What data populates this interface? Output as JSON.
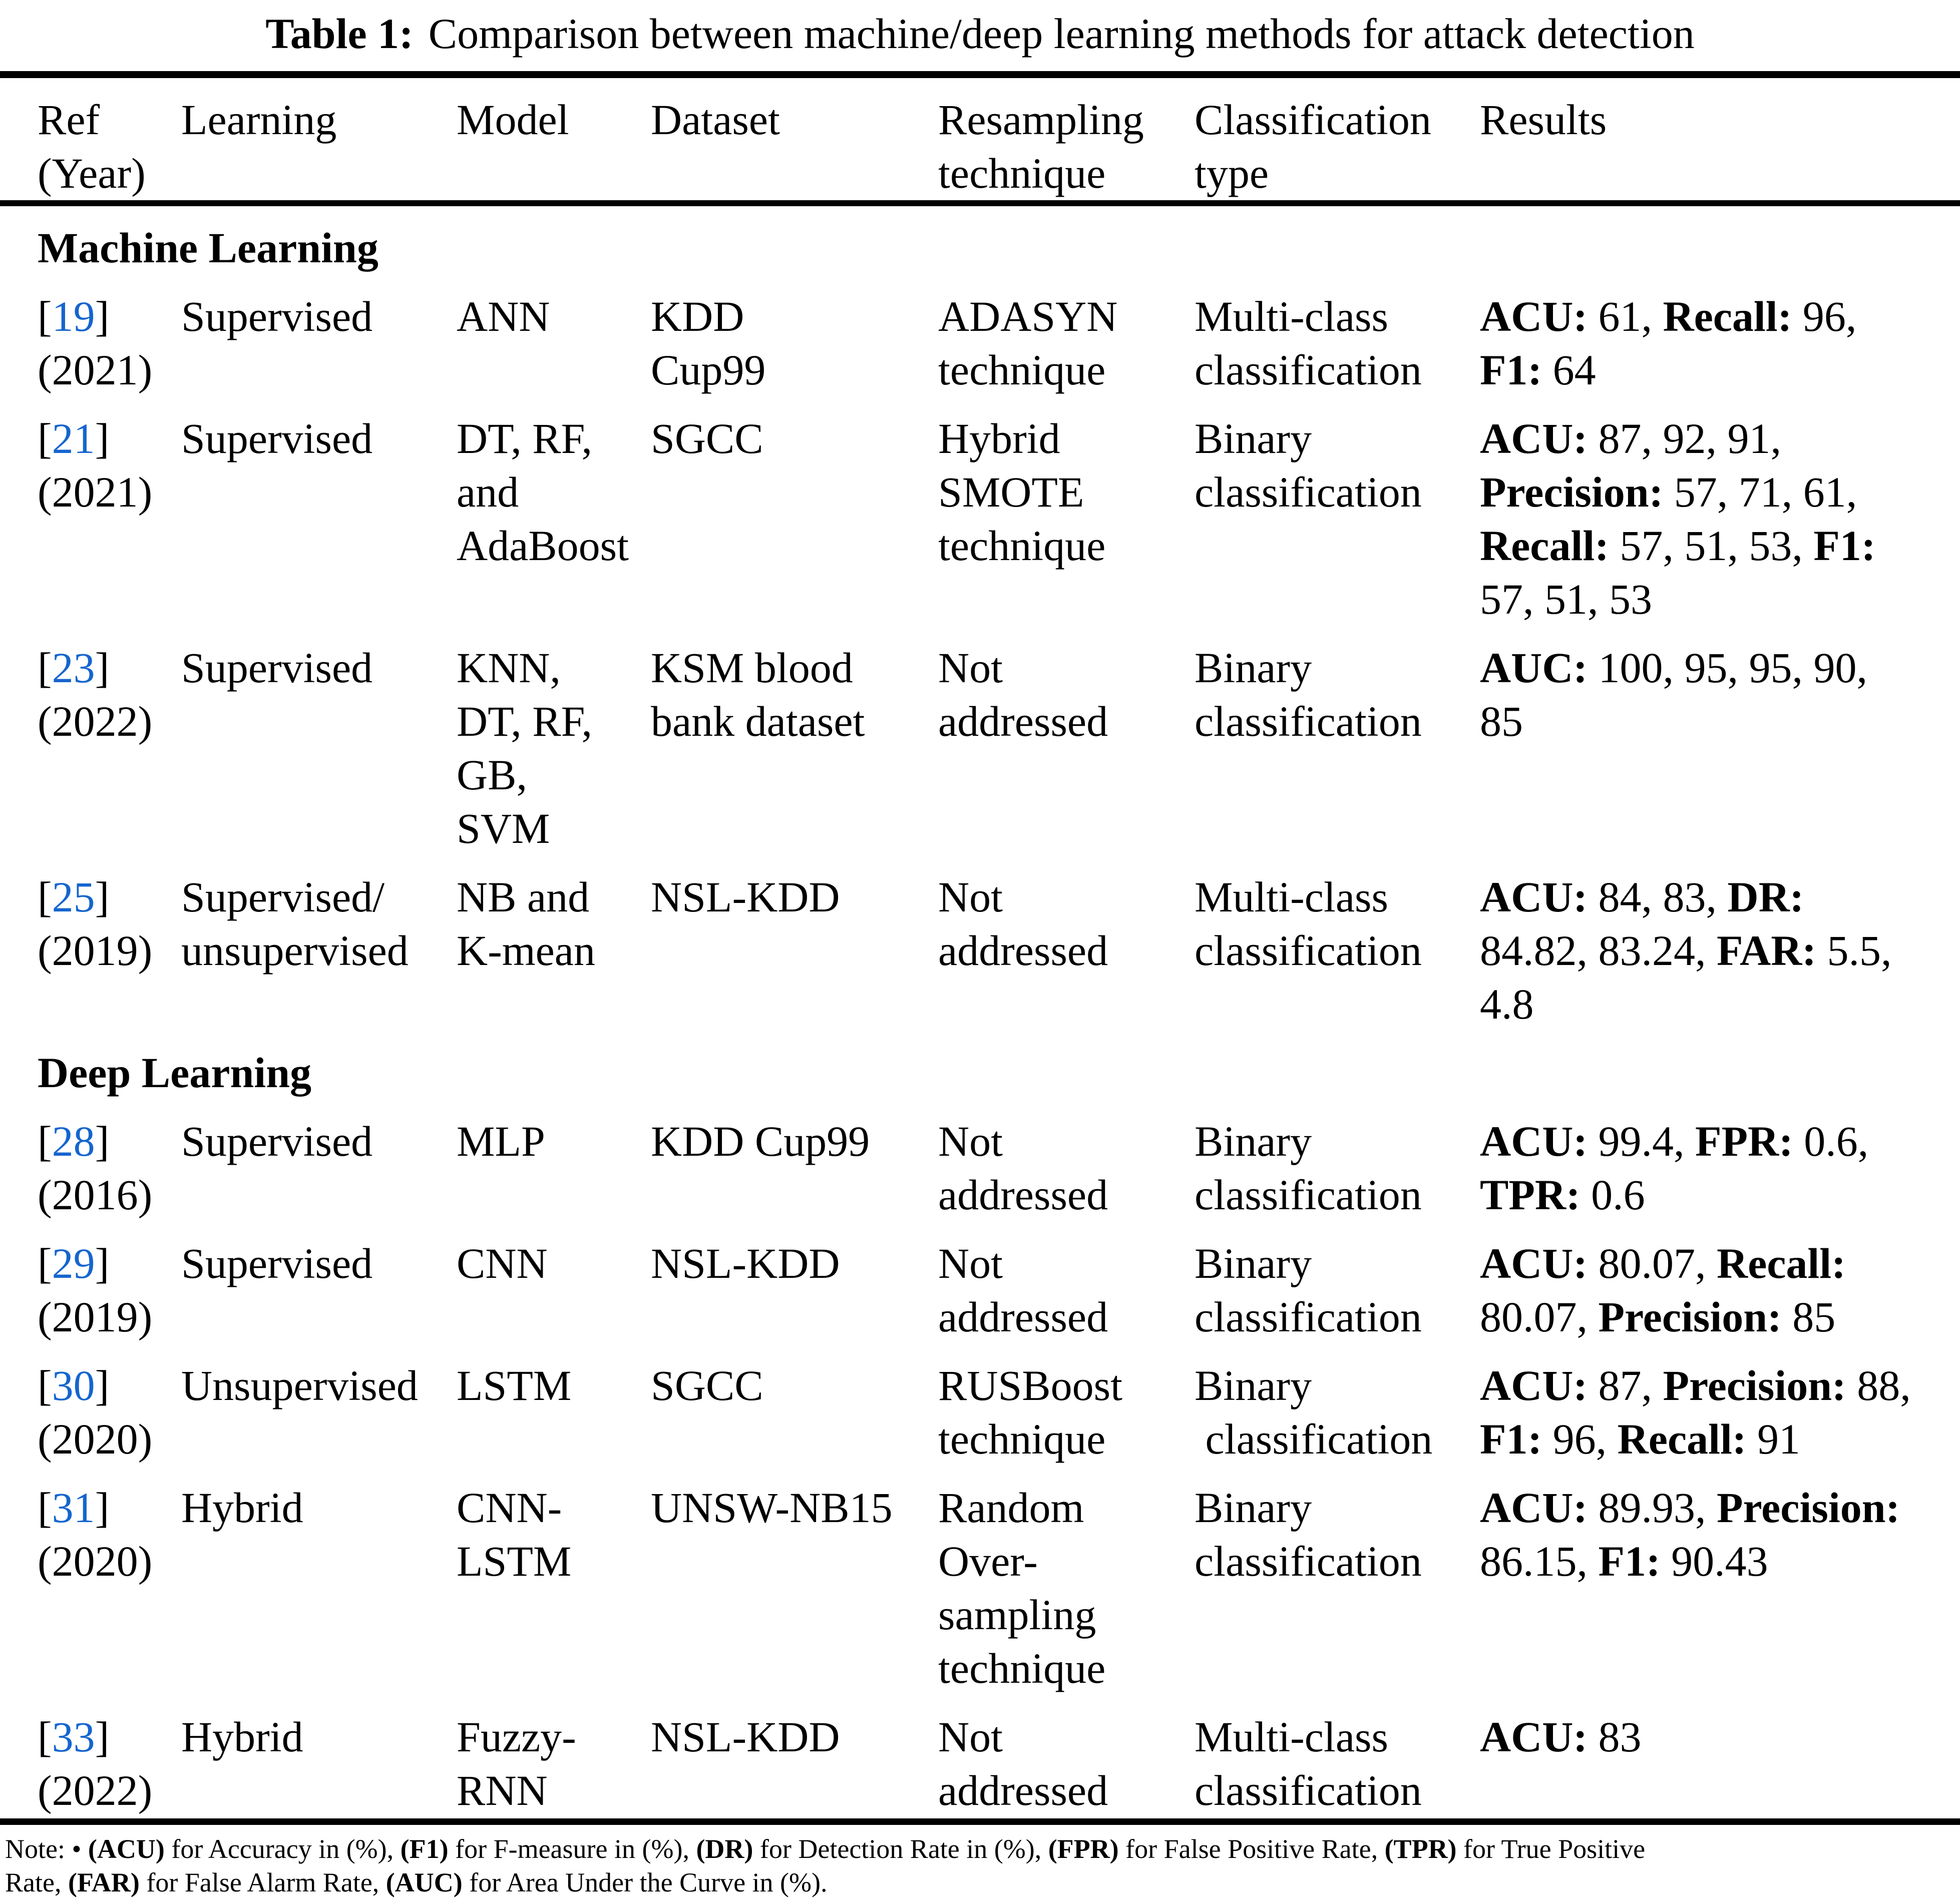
{
  "title": {
    "label": "Table 1:",
    "text": "Comparison between machine/deep learning methods for attack detection"
  },
  "colors": {
    "link_blue": "#1565CE",
    "text": "#000000",
    "background": "#FFFFFF"
  },
  "header": {
    "columns": [
      {
        "id": "ref",
        "lines": [
          "Ref",
          "(Year)"
        ]
      },
      {
        "id": "learning",
        "lines": [
          "Learning"
        ]
      },
      {
        "id": "model",
        "lines": [
          "Model"
        ]
      },
      {
        "id": "dataset",
        "lines": [
          "Dataset"
        ]
      },
      {
        "id": "resampling",
        "lines": [
          "Resampling",
          "technique"
        ]
      },
      {
        "id": "classification",
        "lines": [
          "Classification",
          "type"
        ]
      },
      {
        "id": "results",
        "lines": [
          "Results"
        ]
      }
    ]
  },
  "sections": [
    {
      "name": "Machine Learning",
      "rows": [
        {
          "ref_num": "19",
          "year": "(2021)",
          "learning": [
            "Supervised"
          ],
          "model": [
            "ANN"
          ],
          "dataset": [
            "KDD",
            "Cup99"
          ],
          "resampling": [
            "ADASYN",
            "technique"
          ],
          "classification": [
            "Multi-class",
            "classification"
          ],
          "results": [
            [
              [
                1,
                "ACU:"
              ],
              [
                0,
                " 61, "
              ],
              [
                1,
                "Recall:"
              ],
              [
                0,
                " 96,"
              ]
            ],
            [
              [
                1,
                "F1:"
              ],
              [
                0,
                " 64"
              ]
            ]
          ]
        },
        {
          "ref_num": "21",
          "year": "(2021)",
          "learning": [
            "Supervised"
          ],
          "model": [
            "DT, RF,",
            "and",
            "AdaBoost"
          ],
          "dataset": [
            "SGCC"
          ],
          "resampling": [
            "Hybrid",
            "SMOTE",
            "technique"
          ],
          "classification": [
            "Binary",
            "classification"
          ],
          "results": [
            [
              [
                1,
                "ACU:"
              ],
              [
                0,
                " 87, 92, 91,"
              ]
            ],
            [
              [
                1,
                "Precision:"
              ],
              [
                0,
                " 57, 71, 61,"
              ]
            ],
            [
              [
                1,
                "Recall:"
              ],
              [
                0,
                " 57, 51, 53, "
              ],
              [
                1,
                "F1:"
              ]
            ],
            [
              [
                0,
                "57, 51, 53"
              ]
            ]
          ]
        },
        {
          "ref_num": "23",
          "year": "(2022)",
          "learning": [
            "Supervised"
          ],
          "model": [
            "KNN,",
            "DT, RF,",
            "GB,",
            "SVM"
          ],
          "dataset": [
            "KSM blood",
            "bank dataset"
          ],
          "resampling": [
            "Not",
            "addressed"
          ],
          "classification": [
            "Binary",
            "classification"
          ],
          "results": [
            [
              [
                1,
                "AUC:"
              ],
              [
                0,
                " 100, 95, 95, 90,"
              ]
            ],
            [
              [
                0,
                "85"
              ]
            ]
          ]
        },
        {
          "ref_num": "25",
          "year": "(2019)",
          "learning": [
            "Supervised/",
            "unsupervised"
          ],
          "model": [
            "NB and",
            "K-mean"
          ],
          "dataset": [
            "NSL-KDD"
          ],
          "resampling": [
            "Not",
            "addressed"
          ],
          "classification": [
            "Multi-class",
            "classification"
          ],
          "results": [
            [
              [
                1,
                "ACU:"
              ],
              [
                0,
                " 84, 83, "
              ],
              [
                1,
                "DR:"
              ]
            ],
            [
              [
                0,
                "84.82, 83.24, "
              ],
              [
                1,
                "FAR:"
              ],
              [
                0,
                " 5.5,"
              ]
            ],
            [
              [
                0,
                "4.8"
              ]
            ]
          ]
        }
      ]
    },
    {
      "name": "Deep Learning",
      "rows": [
        {
          "ref_num": "28",
          "year": "(2016)",
          "learning": [
            "Supervised"
          ],
          "model": [
            "MLP"
          ],
          "dataset": [
            "KDD Cup99"
          ],
          "resampling": [
            "Not",
            "addressed"
          ],
          "classification": [
            "Binary",
            "classification"
          ],
          "results": [
            [
              [
                1,
                "ACU:"
              ],
              [
                0,
                " 99.4, "
              ],
              [
                1,
                "FPR:"
              ],
              [
                0,
                " 0.6,"
              ]
            ],
            [
              [
                1,
                "TPR:"
              ],
              [
                0,
                " 0.6"
              ]
            ]
          ]
        },
        {
          "ref_num": "29",
          "year": "(2019)",
          "learning": [
            "Supervised"
          ],
          "model": [
            "CNN"
          ],
          "dataset": [
            "NSL-KDD"
          ],
          "resampling": [
            "Not",
            "addressed"
          ],
          "classification": [
            "Binary",
            "classification"
          ],
          "results": [
            [
              [
                1,
                "ACU:"
              ],
              [
                0,
                " 80.07, "
              ],
              [
                1,
                "Recall:"
              ]
            ],
            [
              [
                0,
                "80.07, "
              ],
              [
                1,
                "Precision:"
              ],
              [
                0,
                " 85"
              ]
            ]
          ]
        },
        {
          "ref_num": "30",
          "year": "(2020)",
          "learning": [
            "Unsupervised"
          ],
          "model": [
            "LSTM"
          ],
          "dataset": [
            "SGCC"
          ],
          "resampling": [
            "RUSBoost",
            "technique"
          ],
          "classification": [
            "Binary",
            " classification"
          ],
          "results": [
            [
              [
                1,
                "ACU:"
              ],
              [
                0,
                " 87, "
              ],
              [
                1,
                "Precision:"
              ],
              [
                0,
                " 88,"
              ]
            ],
            [
              [
                1,
                "F1:"
              ],
              [
                0,
                " 96, "
              ],
              [
                1,
                "Recall:"
              ],
              [
                0,
                " 91"
              ]
            ]
          ]
        },
        {
          "ref_num": "31",
          "year": "(2020)",
          "learning": [
            "Hybrid"
          ],
          "model": [
            "CNN-",
            "LSTM"
          ],
          "dataset": [
            "UNSW-NB15"
          ],
          "resampling": [
            "Random",
            "Over-",
            "sampling",
            "technique"
          ],
          "classification": [
            "Binary",
            "classification"
          ],
          "results": [
            [
              [
                1,
                "ACU:"
              ],
              [
                0,
                " 89.93, "
              ],
              [
                1,
                "Precision:"
              ]
            ],
            [
              [
                0,
                "86.15, "
              ],
              [
                1,
                "F1:"
              ],
              [
                0,
                " 90.43"
              ]
            ]
          ]
        },
        {
          "ref_num": "33",
          "year": "(2022)",
          "learning": [
            "Hybrid"
          ],
          "model": [
            "Fuzzy-",
            "RNN"
          ],
          "dataset": [
            "NSL-KDD"
          ],
          "resampling": [
            "Not",
            "addressed"
          ],
          "classification": [
            "Multi-class",
            "classification"
          ],
          "results": [
            [
              [
                1,
                "ACU:"
              ],
              [
                0,
                " 83"
              ]
            ]
          ]
        }
      ]
    }
  ],
  "note": {
    "lines": [
      [
        [
          0,
          "Note: • "
        ],
        [
          1,
          "(ACU)"
        ],
        [
          0,
          " for Accuracy in (%), "
        ],
        [
          1,
          "(F1)"
        ],
        [
          0,
          " for F-measure in (%), "
        ],
        [
          1,
          "(DR)"
        ],
        [
          0,
          " for Detection Rate in (%), "
        ],
        [
          1,
          "(FPR)"
        ],
        [
          0,
          " for False Positive Rate, "
        ],
        [
          1,
          "(TPR)"
        ],
        [
          0,
          " for True Positive"
        ]
      ],
      [
        [
          0,
          "Rate, "
        ],
        [
          1,
          "(FAR)"
        ],
        [
          0,
          " for False Alarm Rate, "
        ],
        [
          1,
          "(AUC)"
        ],
        [
          0,
          " for Area Under the Curve in (%)."
        ]
      ]
    ]
  }
}
